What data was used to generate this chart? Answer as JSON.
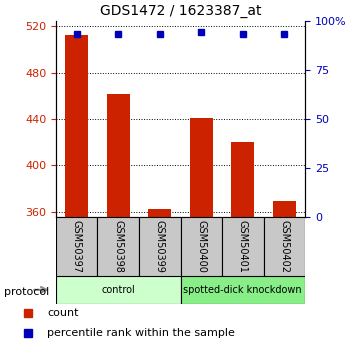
{
  "title": "GDS1472 / 1623387_at",
  "samples": [
    "GSM50397",
    "GSM50398",
    "GSM50399",
    "GSM50400",
    "GSM50401",
    "GSM50402"
  ],
  "counts": [
    513,
    462,
    362,
    441,
    420,
    369
  ],
  "percentile_ranks": [
    93,
    93,
    93,
    94,
    93,
    93
  ],
  "ylim_left": [
    355,
    525
  ],
  "yticks_left": [
    360,
    400,
    440,
    480,
    520
  ],
  "ylim_right": [
    0,
    100
  ],
  "yticks_right": [
    0,
    25,
    50,
    75,
    100
  ],
  "ytick_labels_right": [
    "0",
    "25",
    "50",
    "75",
    "100%"
  ],
  "bar_color": "#cc2200",
  "dot_color": "#0000bb",
  "protocol_groups": [
    {
      "label": "control",
      "start": 0,
      "end": 3,
      "color": "#ccffcc"
    },
    {
      "label": "spotted-dick knockdown",
      "start": 3,
      "end": 6,
      "color": "#88ee88"
    }
  ],
  "legend_items": [
    {
      "label": "count",
      "color": "#cc2200"
    },
    {
      "label": "percentile rank within the sample",
      "color": "#0000bb"
    }
  ],
  "protocol_label": "protocol"
}
